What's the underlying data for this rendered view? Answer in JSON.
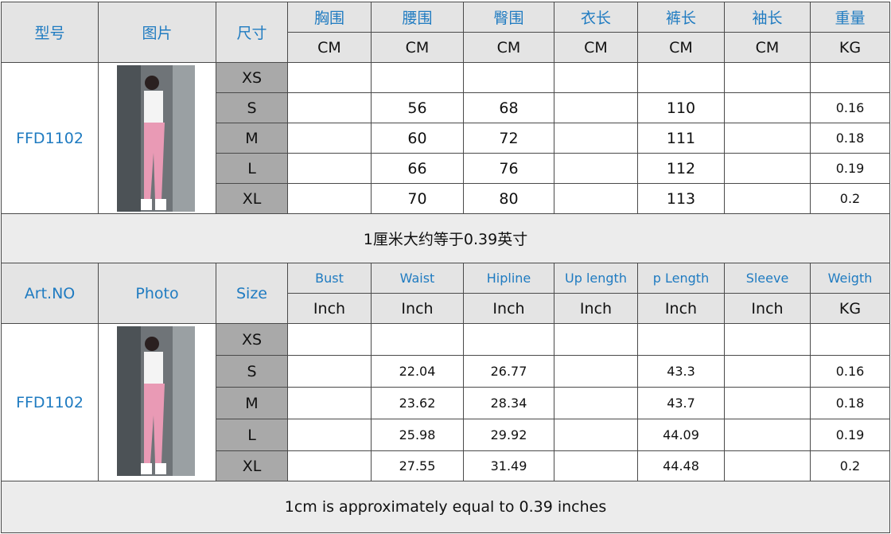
{
  "tables": [
    {
      "headers": {
        "art_no": "型号",
        "photo": "图片",
        "size": "尺寸",
        "columns": [
          "胸围",
          "腰围",
          "臀围",
          "衣长",
          "裤长",
          "袖长",
          "重量"
        ],
        "units": [
          "CM",
          "CM",
          "CM",
          "CM",
          "CM",
          "CM",
          "KG"
        ]
      },
      "art_no": "FFD1102",
      "rows": [
        {
          "size": "XS",
          "values": [
            null,
            null,
            null,
            null,
            null,
            null,
            null
          ]
        },
        {
          "size": "S",
          "values": [
            null,
            "56",
            "68",
            null,
            "110",
            null,
            "0.16"
          ]
        },
        {
          "size": "M",
          "values": [
            null,
            "60",
            "72",
            null,
            "111",
            null,
            "0.18"
          ]
        },
        {
          "size": "L",
          "values": [
            null,
            "66",
            "76",
            null,
            "112",
            null,
            "0.19"
          ]
        },
        {
          "size": "XL",
          "values": [
            null,
            "70",
            "80",
            null,
            "113",
            null,
            "0.2"
          ]
        }
      ],
      "note": "1厘米大约等于0.39英寸"
    },
    {
      "headers": {
        "art_no": "Art.NO",
        "photo": "Photo",
        "size": "Size",
        "columns": [
          "Bust",
          "Waist",
          "Hipline",
          "Up length",
          "p Length",
          "Sleeve",
          "Weigth"
        ],
        "units": [
          "Inch",
          "Inch",
          "Inch",
          "Inch",
          "Inch",
          "Inch",
          "KG"
        ]
      },
      "art_no": "FFD1102",
      "rows": [
        {
          "size": "XS",
          "values": [
            null,
            null,
            null,
            null,
            null,
            null,
            null
          ]
        },
        {
          "size": "S",
          "values": [
            null,
            "22.04",
            "26.77",
            null,
            "43.3",
            null,
            "0.16"
          ]
        },
        {
          "size": "M",
          "values": [
            null,
            "23.62",
            "28.34",
            null,
            "43.7",
            null,
            "0.18"
          ]
        },
        {
          "size": "L",
          "values": [
            null,
            "25.98",
            "29.92",
            null,
            "44.09",
            null,
            "0.19"
          ]
        },
        {
          "size": "XL",
          "values": [
            null,
            "27.55",
            "31.49",
            null,
            "44.48",
            null,
            "0.2"
          ]
        }
      ],
      "note": "1cm is approximately equal to 0.39 inches"
    }
  ]
}
